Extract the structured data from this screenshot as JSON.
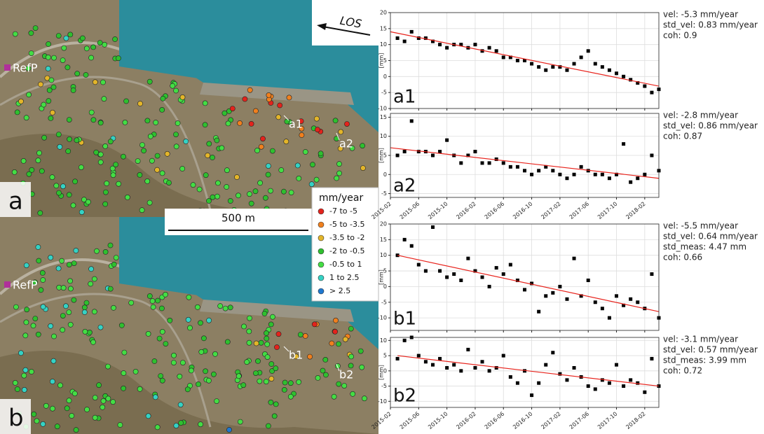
{
  "maps": [
    {
      "panel": "a",
      "ref_label": "RefP",
      "points": [
        {
          "label": "a1"
        },
        {
          "label": "a2"
        }
      ]
    },
    {
      "panel": "b",
      "ref_label": "RefP",
      "points": [
        {
          "label": "b1"
        },
        {
          "label": "b2"
        }
      ]
    }
  ],
  "los": "LOS",
  "scale": "500 m",
  "legend": {
    "title": "mm/year",
    "items": [
      {
        "label": "-7 to -5",
        "color": "#e3231c"
      },
      {
        "label": "-5 to -3.5",
        "color": "#f0801e"
      },
      {
        "label": "-3.5 to -2",
        "color": "#e3b52a"
      },
      {
        "label": "-2 to -0.5",
        "color": "#2fbf2f"
      },
      {
        "label": "-0.5 to 1",
        "color": "#44dd44"
      },
      {
        "label": "1 to 2.5",
        "color": "#35d2c4"
      },
      {
        "label": "> 2.5",
        "color": "#1f78d0"
      }
    ]
  },
  "chart_data": [
    {
      "type": "scatter",
      "panel_label": "a1",
      "ylabel": "[mm]",
      "show_xtick_labels": false,
      "annotations": [
        "vel: -5.3 mm/year",
        "std_vel: 0.83 mm/year",
        "coh: 0.9"
      ],
      "xlim": [
        "2015-02",
        "2018-04"
      ],
      "ylim": [
        -10,
        20
      ],
      "yticks": [
        -10,
        -5,
        0,
        5,
        10,
        15,
        20
      ],
      "xticks": [
        "2015-02",
        "2015-06",
        "2015-10",
        "2016-02",
        "2016-06",
        "2016-10",
        "2017-02",
        "2017-06",
        "2017-10",
        "2018-02"
      ],
      "grid": true,
      "color": "#000000",
      "x": [
        "2015-03",
        "2015-04",
        "2015-05",
        "2015-06",
        "2015-07",
        "2015-08",
        "2015-09",
        "2015-10",
        "2015-11",
        "2015-12",
        "2016-01",
        "2016-02",
        "2016-03",
        "2016-04",
        "2016-05",
        "2016-06",
        "2016-07",
        "2016-08",
        "2016-09",
        "2016-10",
        "2016-11",
        "2016-12",
        "2017-01",
        "2017-02",
        "2017-03",
        "2017-04",
        "2017-05",
        "2017-06",
        "2017-07",
        "2017-08",
        "2017-09",
        "2017-10",
        "2017-11",
        "2017-12",
        "2018-01",
        "2018-02",
        "2018-03",
        "2018-04"
      ],
      "values": [
        12,
        11,
        14,
        12,
        12,
        11,
        10,
        9,
        10,
        10,
        9,
        10,
        8,
        9,
        8,
        6,
        6,
        5,
        5,
        4,
        3,
        2,
        3,
        3,
        2,
        4,
        6,
        8,
        4,
        3,
        2,
        1,
        0,
        -1,
        -2,
        -3,
        -5,
        -4
      ],
      "trend": {
        "color": "#e8231c",
        "x": [
          "2015-02",
          "2018-04"
        ],
        "values": [
          14,
          -3
        ]
      }
    },
    {
      "type": "scatter",
      "panel_label": "a2",
      "ylabel": "[mm]",
      "show_xtick_labels": true,
      "annotations": [
        "vel: -2.8 mm/year",
        "std_vel: 0.86 mm/year",
        "coh: 0.87"
      ],
      "xlim": [
        "2015-02",
        "2018-04"
      ],
      "ylim": [
        -6,
        16
      ],
      "yticks": [
        -5,
        0,
        5,
        10,
        15
      ],
      "xticks": [
        "2015-02",
        "2015-06",
        "2015-10",
        "2016-02",
        "2016-06",
        "2016-10",
        "2017-02",
        "2017-06",
        "2017-10",
        "2018-02"
      ],
      "grid": true,
      "color": "#000000",
      "x": [
        "2015-03",
        "2015-04",
        "2015-05",
        "2015-06",
        "2015-07",
        "2015-08",
        "2015-09",
        "2015-10",
        "2015-11",
        "2015-12",
        "2016-01",
        "2016-02",
        "2016-03",
        "2016-04",
        "2016-05",
        "2016-06",
        "2016-07",
        "2016-08",
        "2016-09",
        "2016-10",
        "2016-11",
        "2016-12",
        "2017-01",
        "2017-02",
        "2017-03",
        "2017-04",
        "2017-05",
        "2017-06",
        "2017-07",
        "2017-08",
        "2017-09",
        "2017-10",
        "2017-11",
        "2017-12",
        "2018-01",
        "2018-02",
        "2018-03",
        "2018-04"
      ],
      "values": [
        5,
        6,
        14,
        6,
        6,
        5,
        6,
        9,
        5,
        3,
        5,
        6,
        3,
        3,
        4,
        3,
        2,
        2,
        1,
        0,
        1,
        2,
        1,
        0,
        -1,
        0,
        2,
        1,
        0,
        0,
        -1,
        0,
        8,
        -2,
        -1,
        0,
        5,
        1
      ],
      "trend": {
        "color": "#e8231c",
        "x": [
          "2015-02",
          "2018-04"
        ],
        "values": [
          7,
          -1
        ]
      }
    },
    {
      "type": "scatter",
      "panel_label": "b1",
      "ylabel": "[mm]",
      "show_xtick_labels": false,
      "annotations": [
        "vel: -5.5 mm/year",
        "std_vel: 0.64 mm/year",
        "std_meas: 4.47 mm",
        "coh: 0.66"
      ],
      "xlim": [
        "2015-02",
        "2018-04"
      ],
      "ylim": [
        -14,
        20
      ],
      "yticks": [
        -10,
        -5,
        0,
        5,
        10,
        15,
        20
      ],
      "xticks": [
        "2015-02",
        "2015-06",
        "2015-10",
        "2016-02",
        "2016-06",
        "2016-10",
        "2017-02",
        "2017-06",
        "2017-10",
        "2018-02"
      ],
      "grid": true,
      "color": "#000000",
      "x": [
        "2015-03",
        "2015-04",
        "2015-05",
        "2015-06",
        "2015-07",
        "2015-08",
        "2015-09",
        "2015-10",
        "2015-11",
        "2015-12",
        "2016-01",
        "2016-02",
        "2016-03",
        "2016-04",
        "2016-05",
        "2016-06",
        "2016-07",
        "2016-08",
        "2016-09",
        "2016-10",
        "2016-11",
        "2016-12",
        "2017-01",
        "2017-02",
        "2017-03",
        "2017-04",
        "2017-05",
        "2017-06",
        "2017-07",
        "2017-08",
        "2017-09",
        "2017-10",
        "2017-11",
        "2017-12",
        "2018-01",
        "2018-02",
        "2018-03",
        "2018-04"
      ],
      "values": [
        10,
        15,
        13,
        7,
        5,
        19,
        5,
        3,
        4,
        2,
        9,
        5,
        3,
        0,
        6,
        4,
        7,
        2,
        -1,
        1,
        -8,
        -3,
        -2,
        0,
        -4,
        9,
        -3,
        2,
        -5,
        -7,
        -10,
        -3,
        -6,
        -4,
        -5,
        -7,
        4,
        -10
      ],
      "trend": {
        "color": "#e8231c",
        "x": [
          "2015-03",
          "2018-04"
        ],
        "values": [
          10,
          -8
        ]
      }
    },
    {
      "type": "scatter",
      "panel_label": "b2",
      "ylabel": "[mm]",
      "show_xtick_labels": true,
      "annotations": [
        "vel: -3.1 mm/year",
        "std_vel: 0.57 mm/year",
        "std_meas: 3.99 mm",
        "coh: 0.72"
      ],
      "xlim": [
        "2015-02",
        "2018-04"
      ],
      "ylim": [
        -12,
        11
      ],
      "yticks": [
        -10,
        -5,
        0,
        5,
        10
      ],
      "xticks": [
        "2015-02",
        "2015-06",
        "2015-10",
        "2016-02",
        "2016-06",
        "2016-10",
        "2017-02",
        "2017-06",
        "2017-10",
        "2018-02"
      ],
      "grid": true,
      "color": "#000000",
      "x": [
        "2015-03",
        "2015-04",
        "2015-05",
        "2015-06",
        "2015-07",
        "2015-08",
        "2015-09",
        "2015-10",
        "2015-11",
        "2015-12",
        "2016-01",
        "2016-02",
        "2016-03",
        "2016-04",
        "2016-05",
        "2016-06",
        "2016-07",
        "2016-08",
        "2016-09",
        "2016-10",
        "2016-11",
        "2016-12",
        "2017-01",
        "2017-02",
        "2017-03",
        "2017-04",
        "2017-05",
        "2017-06",
        "2017-07",
        "2017-08",
        "2017-09",
        "2017-10",
        "2017-11",
        "2017-12",
        "2018-01",
        "2018-02",
        "2018-03",
        "2018-04"
      ],
      "values": [
        4,
        10,
        11,
        5,
        3,
        2,
        4,
        1,
        2,
        0,
        7,
        1,
        3,
        0,
        1,
        5,
        -2,
        -4,
        0,
        -8,
        -4,
        2,
        6,
        -1,
        -3,
        1,
        -2,
        -5,
        -6,
        -3,
        -4,
        2,
        -5,
        -3,
        -4,
        -7,
        4,
        -5
      ],
      "trend": {
        "color": "#e8231c",
        "x": [
          "2015-03",
          "2018-04"
        ],
        "values": [
          5,
          -5
        ]
      }
    }
  ]
}
